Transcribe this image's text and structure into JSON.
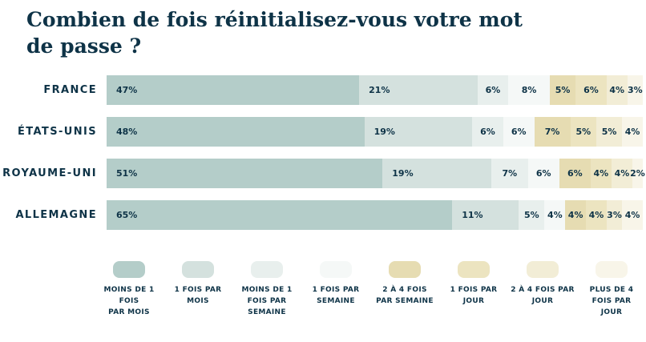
{
  "title": {
    "full": "Combien de fois réinitialisez-vous votre mot de passe ?",
    "lines": [
      "Combien de fois réinitialisez-vous votre mot",
      "de passe ?"
    ]
  },
  "colors": {
    "text": "#0e3347",
    "background": "#ffffff"
  },
  "chart_data": {
    "type": "bar",
    "variant": "stacked-horizontal",
    "unit": "%",
    "value_labels": "inside",
    "legend_position": "bottom",
    "axes": "none",
    "categories": [
      "FRANCE",
      "ÉTATS-UNIS",
      "ROYAUME-UNI",
      "ALLEMAGNE"
    ],
    "series": [
      {
        "name": "MOINS DE 1 FOIS PAR MOIS",
        "legend_lines": [
          "MOINS DE 1 FOIS",
          "PAR MOIS"
        ],
        "color": "#b4cdc9",
        "values": [
          47,
          48,
          51,
          65
        ]
      },
      {
        "name": "1 FOIS PAR MOIS",
        "legend_lines": [
          "1 FOIS PAR",
          "MOIS"
        ],
        "color": "#d4e1de",
        "values": [
          21,
          19,
          19,
          11
        ]
      },
      {
        "name": "MOINS DE 1 FOIS PAR SEMAINE",
        "legend_lines": [
          "MOINS DE 1",
          "FOIS PAR",
          "SEMAINE"
        ],
        "color": "#e8efed",
        "values": [
          6,
          6,
          7,
          5
        ]
      },
      {
        "name": "1 FOIS PAR SEMAINE",
        "legend_lines": [
          "1 FOIS PAR",
          "SEMAINE"
        ],
        "color": "#f5f8f7",
        "values": [
          8,
          6,
          6,
          4
        ]
      },
      {
        "name": "2 À 4 FOIS PAR SEMAINE",
        "legend_lines": [
          "2 À 4 FOIS",
          "PAR SEMAINE"
        ],
        "color": "#e6dcb2",
        "values": [
          5,
          7,
          6,
          4
        ]
      },
      {
        "name": "1 FOIS PAR JOUR",
        "legend_lines": [
          "1 FOIS PAR",
          "JOUR"
        ],
        "color": "#ece4c0",
        "values": [
          6,
          5,
          4,
          4
        ]
      },
      {
        "name": "2 À 4 FOIS PAR JOUR",
        "legend_lines": [
          "2 À 4 FOIS PAR",
          "JOUR"
        ],
        "color": "#f2edd6",
        "values": [
          4,
          5,
          4,
          3
        ]
      },
      {
        "name": "PLUS DE 4 FOIS PAR JOUR",
        "legend_lines": [
          "PLUS DE 4",
          "FOIS PAR",
          "JOUR"
        ],
        "color": "#f8f5e9",
        "values": [
          3,
          4,
          2,
          4
        ]
      }
    ]
  }
}
